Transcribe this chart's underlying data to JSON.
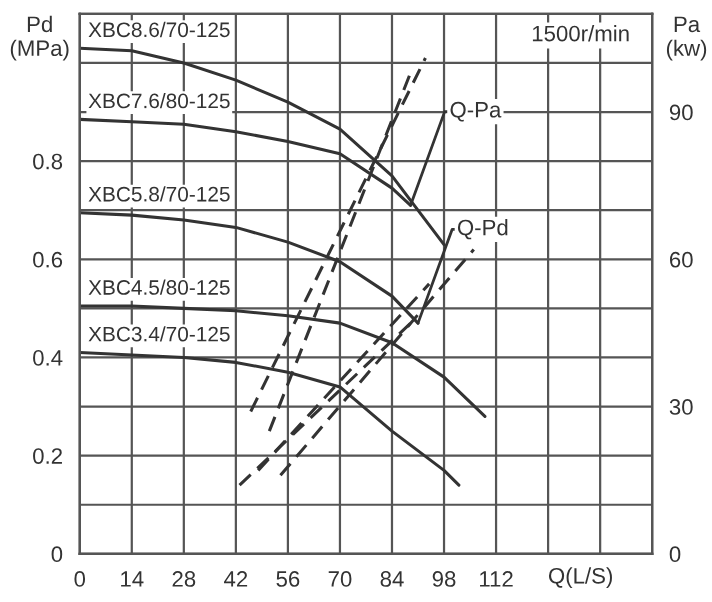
{
  "chart_data": {
    "type": "line",
    "xlabel": "Q(L/S)",
    "ylabel": "Pd\n(MPa)",
    "y2label": "Pa\n(kw)",
    "annotations": [
      "1500r/min",
      {
        "text": "Q-Pa",
        "x": 89,
        "y": 0.71
      },
      {
        "text": "Q-Pd",
        "x": 91,
        "y": 0.47
      }
    ],
    "xlim": [
      0,
      154
    ],
    "xticks": [
      0,
      14,
      28,
      42,
      56,
      70,
      84,
      98,
      112,
      {
        "value": 126,
        "label": null
      },
      {
        "value": 140,
        "label": null
      }
    ],
    "ylim": [
      0,
      1.1
    ],
    "yticks": [
      0,
      {
        "value": 0.1,
        "label": null
      },
      0.2,
      {
        "value": 0.3,
        "label": null
      },
      0.4,
      {
        "value": 0.5,
        "label": null
      },
      0.6,
      {
        "value": 0.7,
        "label": null
      },
      0.8,
      {
        "value": 0.9,
        "label": null
      },
      {
        "value": 1.0,
        "label": null
      }
    ],
    "y2lim": [
      0,
      110
    ],
    "y2ticks": [
      0,
      30,
      60,
      90
    ],
    "grid": true,
    "marker": "none",
    "series": [
      {
        "name": "XBC8.6/70-125",
        "color": "#333333",
        "line_style": "solid",
        "x": [
          0,
          14,
          28,
          42,
          56,
          70,
          84,
          98
        ],
        "values": [
          1.03,
          1.025,
          1.0,
          0.965,
          0.92,
          0.865,
          0.77,
          0.63
        ]
      },
      {
        "name": "XBC7.6/80-125",
        "color": "#333333",
        "line_style": "solid",
        "x": [
          0,
          14,
          28,
          42,
          56,
          70,
          84,
          89
        ],
        "values": [
          0.885,
          0.88,
          0.875,
          0.86,
          0.84,
          0.815,
          0.745,
          0.71
        ]
      },
      {
        "name": "XBC5.8/70-125",
        "color": "#333333",
        "line_style": "solid",
        "x": [
          0,
          14,
          28,
          42,
          56,
          70,
          84,
          91
        ],
        "values": [
          0.695,
          0.69,
          0.68,
          0.665,
          0.635,
          0.595,
          0.525,
          0.47
        ]
      },
      {
        "name": "XBC4.5/80-125",
        "color": "#333333",
        "line_style": "solid",
        "x": [
          0,
          14,
          28,
          42,
          56,
          70,
          84,
          98,
          109
        ],
        "values": [
          0.505,
          0.505,
          0.5,
          0.495,
          0.485,
          0.47,
          0.43,
          0.36,
          0.28
        ]
      },
      {
        "name": "XBC3.4/70-125",
        "color": "#333333",
        "line_style": "solid",
        "x": [
          0,
          14,
          28,
          42,
          56,
          70,
          84,
          98,
          102
        ],
        "values": [
          0.41,
          0.405,
          0.4,
          0.39,
          0.37,
          0.34,
          0.25,
          0.17,
          0.14
        ]
      },
      {
        "color": "#333333",
        "line_style": "dashed",
        "axis": "y2",
        "x": [
          46,
          93
        ],
        "values": [
          29,
          101
        ]
      },
      {
        "color": "#333333",
        "line_style": "dashed",
        "axis": "y2",
        "x": [
          51,
          89
        ],
        "values": [
          25,
          98
        ]
      },
      {
        "color": "#333333",
        "line_style": "dashed",
        "axis": "y2",
        "x": [
          48,
          94
        ],
        "values": [
          17,
          55
        ]
      },
      {
        "color": "#333333",
        "line_style": "dashed",
        "axis": "y2",
        "x": [
          54,
          106
        ],
        "values": [
          16,
          62
        ]
      },
      {
        "color": "#333333",
        "line_style": "dashed",
        "axis": "y2",
        "x": [
          43,
          89
        ],
        "values": [
          14,
          47
        ]
      }
    ]
  }
}
